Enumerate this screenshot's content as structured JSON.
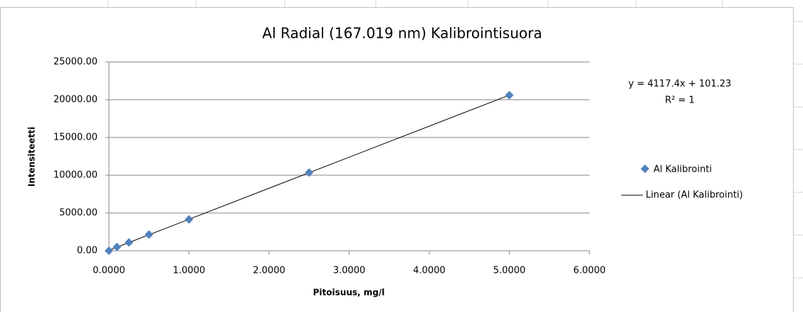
{
  "chart_data": {
    "type": "scatter",
    "title": "Al Radial (167.019 nm) Kalibrointisuora",
    "x_label": "Pitoisuus,  mg/l",
    "y_label": "Intensiteetti",
    "series": [
      {
        "name": "Al Kalibrointi",
        "color": "#4f81bd",
        "x": [
          0,
          0.1,
          0.25,
          0.5,
          1.0,
          2.5,
          5.0
        ],
        "values": [
          0,
          500,
          1100,
          2150,
          4150,
          10350,
          20600
        ]
      }
    ],
    "trendline": {
      "type": "linear",
      "name": "Linear (Al Kalibrointi)",
      "color": "#000000",
      "equation": "y = 4117.4x + 101.23",
      "r_squared": "R² = 1"
    },
    "xlim": [
      0,
      6
    ],
    "xticks": [
      {
        "value": 0,
        "label": "0.0000"
      },
      {
        "value": 1,
        "label": "1.0000"
      },
      {
        "value": 2,
        "label": "2.0000"
      },
      {
        "value": 3,
        "label": "3.0000"
      },
      {
        "value": 4,
        "label": "4.0000"
      },
      {
        "value": 5,
        "label": "5.0000"
      },
      {
        "value": 6,
        "label": "6.0000"
      }
    ],
    "ylim": [
      0,
      25000
    ],
    "yticks": [
      {
        "value": 0,
        "label": "0.00"
      },
      {
        "value": 5000,
        "label": "5000.00"
      },
      {
        "value": 10000,
        "label": "10000.00"
      },
      {
        "value": 15000,
        "label": "15000.00"
      },
      {
        "value": 20000,
        "label": "20000.00"
      },
      {
        "value": 25000,
        "label": "25000.00"
      }
    ],
    "grid": true,
    "legend": "right"
  }
}
